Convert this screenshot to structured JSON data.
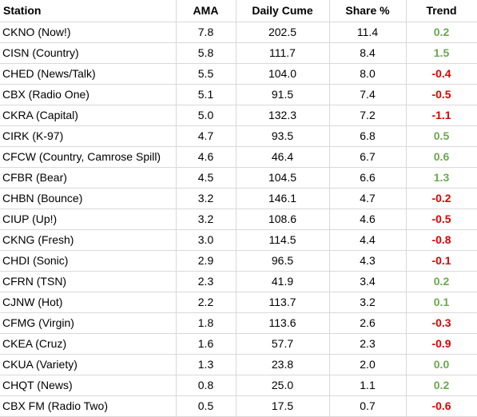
{
  "table": {
    "headers": [
      "Station",
      "AMA",
      "Daily Cume",
      "Share %",
      "Trend"
    ],
    "rows": [
      {
        "station": "CKNO (Now!)",
        "ama": "7.8",
        "cume": "202.5",
        "share": "11.4",
        "trend": "0.2",
        "dir": "pos"
      },
      {
        "station": "CISN (Country)",
        "ama": "5.8",
        "cume": "111.7",
        "share": "8.4",
        "trend": "1.5",
        "dir": "pos"
      },
      {
        "station": "CHED (News/Talk)",
        "ama": "5.5",
        "cume": "104.0",
        "share": "8.0",
        "trend": "-0.4",
        "dir": "neg"
      },
      {
        "station": "CBX (Radio One)",
        "ama": "5.1",
        "cume": "91.5",
        "share": "7.4",
        "trend": "-0.5",
        "dir": "neg"
      },
      {
        "station": "CKRA (Capital)",
        "ama": "5.0",
        "cume": "132.3",
        "share": "7.2",
        "trend": "-1.1",
        "dir": "neg"
      },
      {
        "station": "CIRK (K-97)",
        "ama": "4.7",
        "cume": "93.5",
        "share": "6.8",
        "trend": "0.5",
        "dir": "pos"
      },
      {
        "station": "CFCW (Country, Camrose Spill)",
        "ama": "4.6",
        "cume": "46.4",
        "share": "6.7",
        "trend": "0.6",
        "dir": "pos"
      },
      {
        "station": "CFBR (Bear)",
        "ama": "4.5",
        "cume": "104.5",
        "share": "6.6",
        "trend": "1.3",
        "dir": "pos"
      },
      {
        "station": "CHBN (Bounce)",
        "ama": "3.2",
        "cume": "146.1",
        "share": "4.7",
        "trend": "-0.2",
        "dir": "neg"
      },
      {
        "station": "CIUP (Up!)",
        "ama": "3.2",
        "cume": "108.6",
        "share": "4.6",
        "trend": "-0.5",
        "dir": "neg"
      },
      {
        "station": "CKNG (Fresh)",
        "ama": "3.0",
        "cume": "114.5",
        "share": "4.4",
        "trend": "-0.8",
        "dir": "neg"
      },
      {
        "station": "CHDI (Sonic)",
        "ama": "2.9",
        "cume": "96.5",
        "share": "4.3",
        "trend": "-0.1",
        "dir": "neg"
      },
      {
        "station": "CFRN (TSN)",
        "ama": "2.3",
        "cume": "41.9",
        "share": "3.4",
        "trend": "0.2",
        "dir": "pos"
      },
      {
        "station": "CJNW (Hot)",
        "ama": "2.2",
        "cume": "113.7",
        "share": "3.2",
        "trend": "0.1",
        "dir": "pos"
      },
      {
        "station": "CFMG (Virgin)",
        "ama": "1.8",
        "cume": "113.6",
        "share": "2.6",
        "trend": "-0.3",
        "dir": "neg"
      },
      {
        "station": "CKEA (Cruz)",
        "ama": "1.6",
        "cume": "57.7",
        "share": "2.3",
        "trend": "-0.9",
        "dir": "neg"
      },
      {
        "station": "CKUA (Variety)",
        "ama": "1.3",
        "cume": "23.8",
        "share": "2.0",
        "trend": "0.0",
        "dir": "pos"
      },
      {
        "station": "CHQT (News)",
        "ama": "0.8",
        "cume": "25.0",
        "share": "1.1",
        "trend": "0.2",
        "dir": "pos"
      },
      {
        "station": "CBX FM (Radio Two)",
        "ama": "0.5",
        "cume": "17.5",
        "share": "0.7",
        "trend": "-0.6",
        "dir": "neg"
      }
    ]
  },
  "colors": {
    "positive": "#6aa84f",
    "negative": "#e00000",
    "gridline": "#d9d9d9"
  }
}
